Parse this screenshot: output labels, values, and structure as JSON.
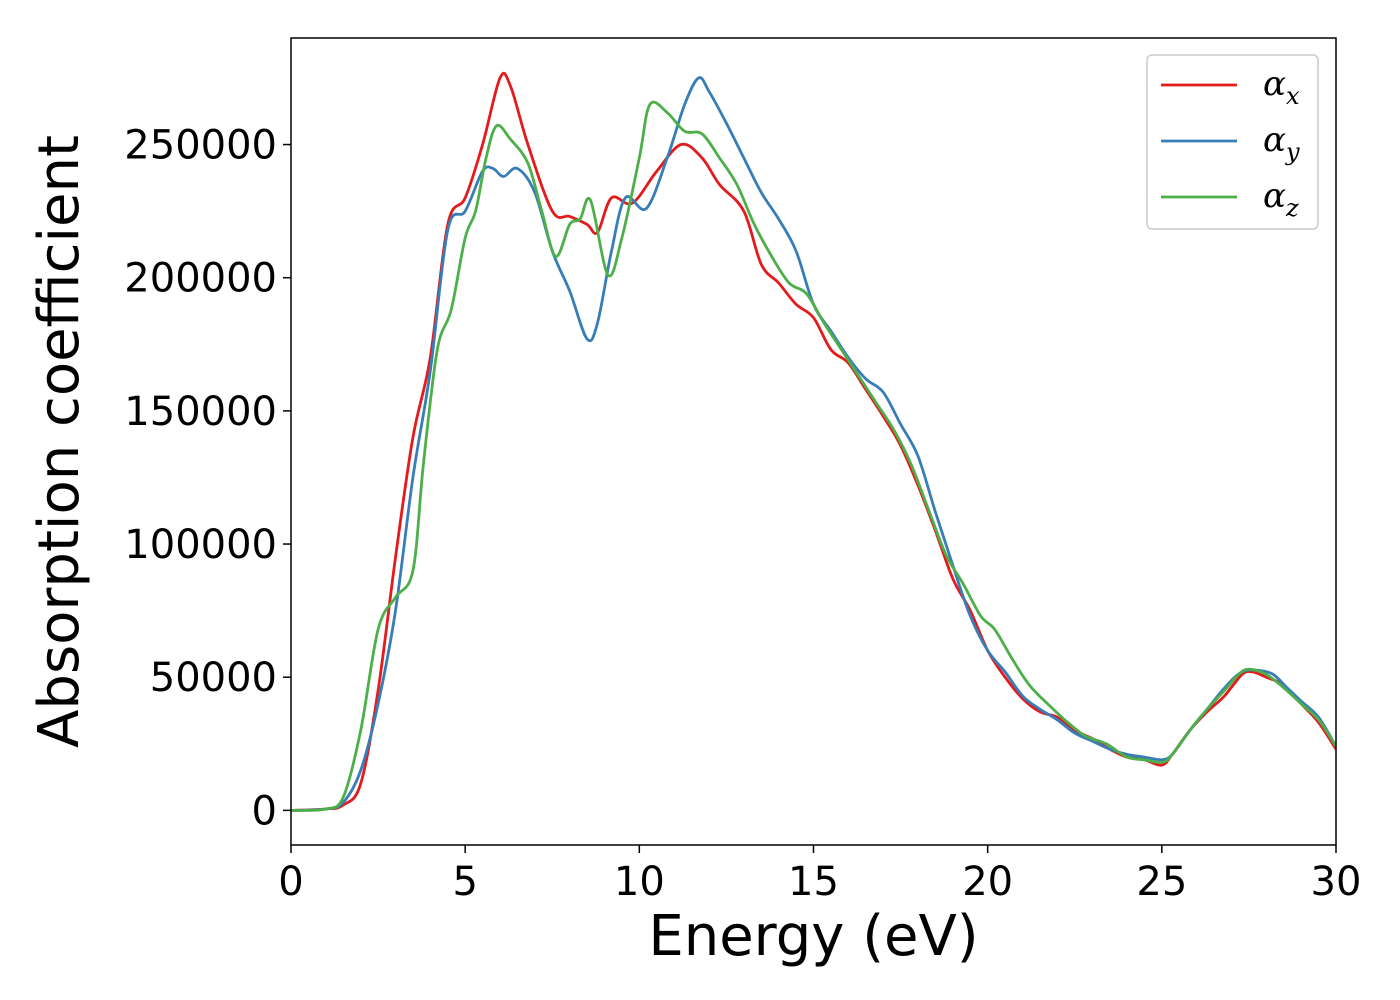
{
  "chart_data": {
    "type": "line",
    "xlabel": "Energy (eV)",
    "ylabel": "Absorption coefficient",
    "xlim": [
      0,
      30
    ],
    "ylim": [
      -13000,
      290000
    ],
    "xticks": [
      0,
      5,
      10,
      15,
      20,
      25,
      30
    ],
    "yticks": [
      0,
      50000,
      100000,
      150000,
      200000,
      250000
    ],
    "grid": false,
    "legend_position": "top-right",
    "series": [
      {
        "name": "α",
        "sub": "x",
        "color": "#e41a1c",
        "points": [
          [
            0,
            0
          ],
          [
            1,
            500
          ],
          [
            1.5,
            2000
          ],
          [
            2,
            10000
          ],
          [
            2.5,
            45000
          ],
          [
            3,
            95000
          ],
          [
            3.5,
            140000
          ],
          [
            4,
            170000
          ],
          [
            4.5,
            220000
          ],
          [
            5,
            230000
          ],
          [
            5.5,
            250000
          ],
          [
            6,
            275000
          ],
          [
            6.3,
            272000
          ],
          [
            6.8,
            250000
          ],
          [
            7.5,
            225000
          ],
          [
            8,
            223000
          ],
          [
            8.5,
            220000
          ],
          [
            8.8,
            217000
          ],
          [
            9.2,
            230000
          ],
          [
            9.8,
            228000
          ],
          [
            10.5,
            240000
          ],
          [
            11.2,
            250000
          ],
          [
            11.8,
            245000
          ],
          [
            12.3,
            235000
          ],
          [
            13,
            225000
          ],
          [
            13.5,
            205000
          ],
          [
            14,
            198000
          ],
          [
            14.5,
            190000
          ],
          [
            15,
            185000
          ],
          [
            15.5,
            173000
          ],
          [
            16,
            168000
          ],
          [
            16.5,
            158000
          ],
          [
            17,
            148000
          ],
          [
            17.5,
            137000
          ],
          [
            18,
            122000
          ],
          [
            18.5,
            105000
          ],
          [
            19,
            87000
          ],
          [
            19.5,
            75000
          ],
          [
            20,
            60000
          ],
          [
            20.5,
            50000
          ],
          [
            21,
            42000
          ],
          [
            21.5,
            37000
          ],
          [
            22,
            35000
          ],
          [
            22.5,
            30000
          ],
          [
            23,
            27000
          ],
          [
            23.5,
            23000
          ],
          [
            24,
            20000
          ],
          [
            24.5,
            19000
          ],
          [
            25,
            17000
          ],
          [
            25.3,
            21000
          ],
          [
            25.8,
            30000
          ],
          [
            26.3,
            37000
          ],
          [
            26.8,
            43000
          ],
          [
            27.3,
            51000
          ],
          [
            27.6,
            52000
          ],
          [
            28,
            50000
          ],
          [
            28.5,
            47000
          ],
          [
            29,
            40000
          ],
          [
            29.5,
            33000
          ],
          [
            30,
            23000
          ]
        ]
      },
      {
        "name": "α",
        "sub": "y",
        "color": "#377eb8",
        "points": [
          [
            0,
            0
          ],
          [
            1,
            500
          ],
          [
            1.5,
            3000
          ],
          [
            2,
            15000
          ],
          [
            2.5,
            40000
          ],
          [
            3,
            75000
          ],
          [
            3.5,
            125000
          ],
          [
            4,
            165000
          ],
          [
            4.5,
            218000
          ],
          [
            5,
            225000
          ],
          [
            5.5,
            240000
          ],
          [
            5.8,
            241000
          ],
          [
            6.1,
            238000
          ],
          [
            6.5,
            241000
          ],
          [
            7,
            232000
          ],
          [
            7.5,
            210000
          ],
          [
            8,
            195000
          ],
          [
            8.5,
            177000
          ],
          [
            8.8,
            183000
          ],
          [
            9.2,
            210000
          ],
          [
            9.6,
            230000
          ],
          [
            10.2,
            226000
          ],
          [
            10.8,
            245000
          ],
          [
            11.3,
            265000
          ],
          [
            11.7,
            275000
          ],
          [
            12,
            270000
          ],
          [
            12.5,
            258000
          ],
          [
            13,
            245000
          ],
          [
            13.5,
            232000
          ],
          [
            14,
            222000
          ],
          [
            14.5,
            210000
          ],
          [
            15,
            190000
          ],
          [
            15.5,
            180000
          ],
          [
            16,
            170000
          ],
          [
            16.5,
            162000
          ],
          [
            17,
            157000
          ],
          [
            17.5,
            145000
          ],
          [
            18,
            133000
          ],
          [
            18.5,
            112000
          ],
          [
            19,
            92000
          ],
          [
            19.5,
            73000
          ],
          [
            20,
            60000
          ],
          [
            20.5,
            52000
          ],
          [
            21,
            43000
          ],
          [
            21.5,
            38000
          ],
          [
            22,
            34000
          ],
          [
            22.5,
            29000
          ],
          [
            23,
            26000
          ],
          [
            23.5,
            23000
          ],
          [
            24,
            21000
          ],
          [
            24.5,
            20000
          ],
          [
            25,
            19000
          ],
          [
            25.3,
            21000
          ],
          [
            25.8,
            30000
          ],
          [
            26.3,
            38000
          ],
          [
            26.8,
            46000
          ],
          [
            27.3,
            52000
          ],
          [
            27.8,
            52500
          ],
          [
            28.2,
            51000
          ],
          [
            28.6,
            46000
          ],
          [
            29,
            41000
          ],
          [
            29.5,
            35000
          ],
          [
            30,
            24000
          ]
        ]
      },
      {
        "name": "α",
        "sub": "z",
        "color": "#4daf4a",
        "points": [
          [
            0,
            0
          ],
          [
            1,
            500
          ],
          [
            1.5,
            5000
          ],
          [
            2,
            30000
          ],
          [
            2.5,
            68000
          ],
          [
            3,
            80000
          ],
          [
            3.5,
            90000
          ],
          [
            3.8,
            130000
          ],
          [
            4.2,
            173000
          ],
          [
            4.6,
            188000
          ],
          [
            5,
            215000
          ],
          [
            5.3,
            225000
          ],
          [
            5.6,
            245000
          ],
          [
            5.9,
            257000
          ],
          [
            6.3,
            252000
          ],
          [
            6.8,
            243000
          ],
          [
            7.2,
            225000
          ],
          [
            7.6,
            208000
          ],
          [
            8,
            220000
          ],
          [
            8.3,
            222000
          ],
          [
            8.6,
            229000
          ],
          [
            9.1,
            201000
          ],
          [
            9.5,
            215000
          ],
          [
            10,
            245000
          ],
          [
            10.3,
            265000
          ],
          [
            10.8,
            262000
          ],
          [
            11.3,
            255000
          ],
          [
            11.8,
            254000
          ],
          [
            12.3,
            245000
          ],
          [
            12.8,
            235000
          ],
          [
            13.3,
            220000
          ],
          [
            13.8,
            208000
          ],
          [
            14.3,
            198000
          ],
          [
            14.8,
            194000
          ],
          [
            15.3,
            183000
          ],
          [
            15.8,
            173000
          ],
          [
            16.3,
            163000
          ],
          [
            16.8,
            153000
          ],
          [
            17.3,
            143000
          ],
          [
            17.8,
            130000
          ],
          [
            18.3,
            113000
          ],
          [
            18.8,
            96000
          ],
          [
            19.3,
            85000
          ],
          [
            19.8,
            73000
          ],
          [
            20.2,
            68000
          ],
          [
            20.7,
            57000
          ],
          [
            21.2,
            47000
          ],
          [
            21.8,
            39000
          ],
          [
            22.3,
            33000
          ],
          [
            22.8,
            28000
          ],
          [
            23.4,
            25000
          ],
          [
            24,
            20000
          ],
          [
            24.5,
            19000
          ],
          [
            25,
            18000
          ],
          [
            25.3,
            21000
          ],
          [
            25.8,
            30000
          ],
          [
            26.3,
            38000
          ],
          [
            26.8,
            45000
          ],
          [
            27.2,
            51000
          ],
          [
            27.5,
            53000
          ],
          [
            28,
            51000
          ],
          [
            28.5,
            46000
          ],
          [
            29,
            40000
          ],
          [
            29.5,
            34000
          ],
          [
            30,
            24000
          ]
        ]
      }
    ]
  }
}
